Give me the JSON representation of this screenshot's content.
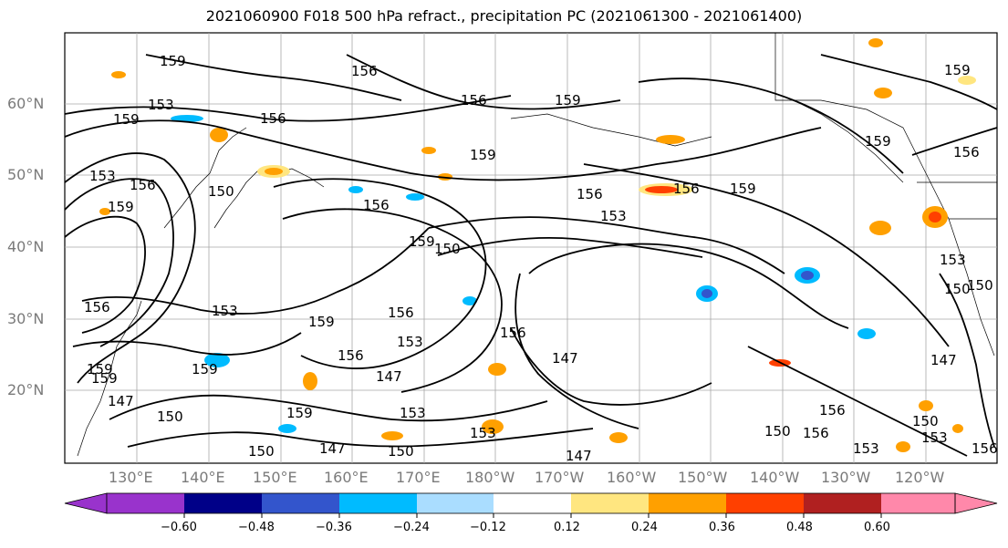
{
  "title": "2021060900 F018 500 hPa refract., precipitation PC (2021061300 - 2021061400)",
  "map": {
    "lat_ticks": [
      "60°N",
      "50°N",
      "40°N",
      "30°N",
      "20°N"
    ],
    "lon_ticks": [
      "130°E",
      "140°E",
      "150°E",
      "160°E",
      "170°E",
      "180°W",
      "170°W",
      "160°W",
      "150°W",
      "140°W",
      "130°W",
      "120°W"
    ],
    "contour_labels": [
      "159",
      "153",
      "156",
      "159",
      "156",
      "153",
      "156",
      "159",
      "156",
      "159",
      "150",
      "156",
      "159",
      "159",
      "153",
      "156",
      "159",
      "159",
      "156",
      "150",
      "156",
      "159",
      "153",
      "153",
      "156",
      "159",
      "147",
      "147",
      "153",
      "150",
      "159",
      "150",
      "147",
      "150",
      "153",
      "156",
      "147",
      "153",
      "159",
      "150",
      "150",
      "147",
      "150",
      "156",
      "156",
      "159",
      "147",
      "156",
      "153",
      "153",
      "156",
      "150",
      "159",
      "156"
    ],
    "grid": true,
    "contour_color": "#000000"
  },
  "colorbar": {
    "ticks": [
      "−0.60",
      "−0.48",
      "−0.36",
      "−0.24",
      "−0.12",
      "0.12",
      "0.24",
      "0.36",
      "0.48",
      "0.60"
    ],
    "colors": [
      "#9933cc",
      "#000088",
      "#3355cc",
      "#00bbff",
      "#aaddff",
      "#ffffff",
      "#ffe680",
      "#ffa000",
      "#ff4000",
      "#b02020",
      "#ff88aa"
    ],
    "under_color": "#9933cc",
    "over_color": "#ff88aa"
  }
}
